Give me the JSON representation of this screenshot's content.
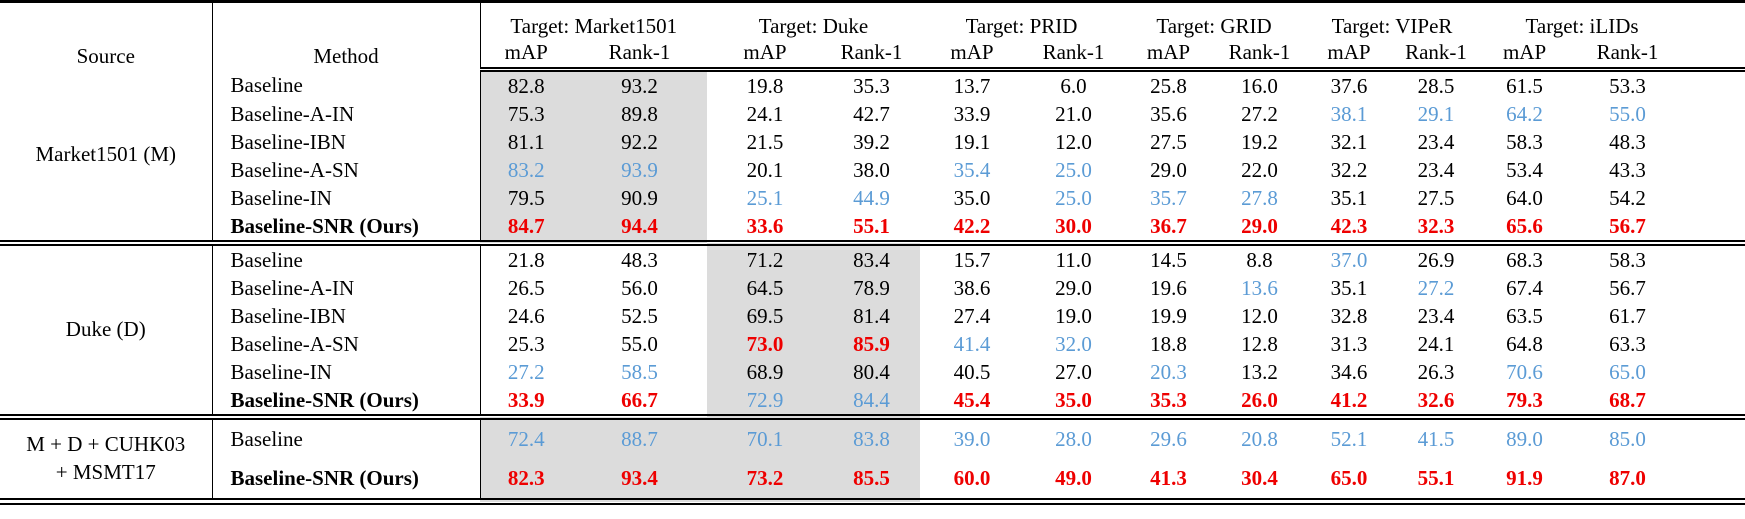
{
  "colors": {
    "blue": "#5B9BD5",
    "red": "#EE0000",
    "highlight": "#DCDCDC",
    "rule": "#000000"
  },
  "table": {
    "source_label": "Source",
    "method_label": "Method",
    "target_groups": [
      "Target: Market1501",
      "Target: Duke",
      "Target: PRID",
      "Target: GRID",
      "Target: VIPeR",
      "Target: iLIDs"
    ],
    "subheaders": [
      "mAP",
      "Rank-1"
    ],
    "style_legend": {
      "k": "black",
      "b": "blue",
      "r": "red-bold"
    },
    "groups": [
      {
        "source_lines": [
          "Market1501 (M)"
        ],
        "gray_cols": [
          0,
          1
        ],
        "rows": [
          {
            "method": "Baseline",
            "method_bold": false,
            "values": [
              "82.8",
              "93.2",
              "19.8",
              "35.3",
              "13.7",
              "6.0",
              "25.8",
              "16.0",
              "37.6",
              "28.5",
              "61.5",
              "53.3"
            ],
            "styles": "kkkkkkkkkkkk"
          },
          {
            "method": "Baseline-A-IN",
            "method_bold": false,
            "values": [
              "75.3",
              "89.8",
              "24.1",
              "42.7",
              "33.9",
              "21.0",
              "35.6",
              "27.2",
              "38.1",
              "29.1",
              "64.2",
              "55.0"
            ],
            "styles": "kkkkkkkkbbbb"
          },
          {
            "method": "Baseline-IBN",
            "method_bold": false,
            "values": [
              "81.1",
              "92.2",
              "21.5",
              "39.2",
              "19.1",
              "12.0",
              "27.5",
              "19.2",
              "32.1",
              "23.4",
              "58.3",
              "48.3"
            ],
            "styles": "kkkkkkkkkkkk"
          },
          {
            "method": "Baseline-A-SN",
            "method_bold": false,
            "values": [
              "83.2",
              "93.9",
              "20.1",
              "38.0",
              "35.4",
              "25.0",
              "29.0",
              "22.0",
              "32.2",
              "23.4",
              "53.4",
              "43.3"
            ],
            "styles": "bbkkbbkkkkkk"
          },
          {
            "method": "Baseline-IN",
            "method_bold": false,
            "values": [
              "79.5",
              "90.9",
              "25.1",
              "44.9",
              "35.0",
              "25.0",
              "35.7",
              "27.8",
              "35.1",
              "27.5",
              "64.0",
              "54.2"
            ],
            "styles": "kkbbkbbbkkkk"
          },
          {
            "method": "Baseline-SNR (Ours)",
            "method_bold": true,
            "values": [
              "84.7",
              "94.4",
              "33.6",
              "55.1",
              "42.2",
              "30.0",
              "36.7",
              "29.0",
              "42.3",
              "32.3",
              "65.6",
              "56.7"
            ],
            "styles": "rrrrrrrrrrrr"
          }
        ]
      },
      {
        "source_lines": [
          "Duke (D)"
        ],
        "gray_cols": [
          2,
          3
        ],
        "rows": [
          {
            "method": "Baseline",
            "method_bold": false,
            "values": [
              "21.8",
              "48.3",
              "71.2",
              "83.4",
              "15.7",
              "11.0",
              "14.5",
              "8.8",
              "37.0",
              "26.9",
              "68.3",
              "58.3"
            ],
            "styles": "kkkkkkkkbkkk"
          },
          {
            "method": "Baseline-A-IN",
            "method_bold": false,
            "values": [
              "26.5",
              "56.0",
              "64.5",
              "78.9",
              "38.6",
              "29.0",
              "19.6",
              "13.6",
              "35.1",
              "27.2",
              "67.4",
              "56.7"
            ],
            "styles": "kkkkkkkbkbkk"
          },
          {
            "method": "Baseline-IBN",
            "method_bold": false,
            "values": [
              "24.6",
              "52.5",
              "69.5",
              "81.4",
              "27.4",
              "19.0",
              "19.9",
              "12.0",
              "32.8",
              "23.4",
              "63.5",
              "61.7"
            ],
            "styles": "kkkkkkkkkkkk"
          },
          {
            "method": "Baseline-A-SN",
            "method_bold": false,
            "values": [
              "25.3",
              "55.0",
              "73.0",
              "85.9",
              "41.4",
              "32.0",
              "18.8",
              "12.8",
              "31.3",
              "24.1",
              "64.8",
              "63.3"
            ],
            "styles": "kkrrbbkkkkkk"
          },
          {
            "method": "Baseline-IN",
            "method_bold": false,
            "values": [
              "27.2",
              "58.5",
              "68.9",
              "80.4",
              "40.5",
              "27.0",
              "20.3",
              "13.2",
              "34.6",
              "26.3",
              "70.6",
              "65.0"
            ],
            "styles": "bbkkkkbkkkbb"
          },
          {
            "method": "Baseline-SNR (Ours)",
            "method_bold": true,
            "values": [
              "33.9",
              "66.7",
              "72.9",
              "84.4",
              "45.4",
              "35.0",
              "35.3",
              "26.0",
              "41.2",
              "32.6",
              "79.3",
              "68.7"
            ],
            "styles": "rrbbrrrrrrrr"
          }
        ]
      },
      {
        "source_lines": [
          "M + D + CUHK03",
          "+ MSMT17"
        ],
        "gray_cols": [
          0,
          1,
          2,
          3
        ],
        "rows": [
          {
            "method": "Baseline",
            "method_bold": false,
            "values": [
              "72.4",
              "88.7",
              "70.1",
              "83.8",
              "39.0",
              "28.0",
              "29.6",
              "20.8",
              "52.1",
              "41.5",
              "89.0",
              "85.0"
            ],
            "styles": "bbbbbbbbbbbb"
          },
          {
            "method": "Baseline-SNR (Ours)",
            "method_bold": true,
            "values": [
              "82.3",
              "93.4",
              "73.2",
              "85.5",
              "60.0",
              "49.0",
              "41.3",
              "30.4",
              "65.0",
              "55.1",
              "91.9",
              "87.0"
            ],
            "styles": "rrrrrrrrrrrr"
          }
        ]
      }
    ]
  }
}
